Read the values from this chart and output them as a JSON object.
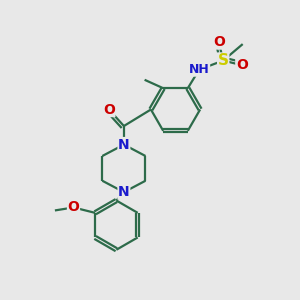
{
  "bg_color": "#e8e8e8",
  "bond_color": "#2d6b4a",
  "bond_width": 1.6,
  "atom_colors": {
    "N": "#1a1acc",
    "O": "#cc0000",
    "S": "#cccc00",
    "H": "#888888",
    "C": "#2d6b4a"
  },
  "font_size": 9,
  "figsize": [
    3.0,
    3.0
  ],
  "dpi": 100,
  "xlim": [
    0,
    10
  ],
  "ylim": [
    0,
    10
  ]
}
